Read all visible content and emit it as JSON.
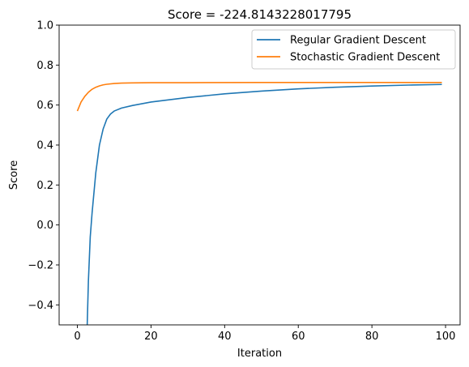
{
  "chart_data": {
    "type": "line",
    "title": "Score = -224.8143228017795",
    "xlabel": "Iteration",
    "ylabel": "Score",
    "xlim": [
      -4.95,
      103.95
    ],
    "ylim": [
      -0.5,
      1.0
    ],
    "xticks": [
      0,
      20,
      40,
      60,
      80,
      100
    ],
    "yticks": [
      -0.4,
      -0.2,
      0.0,
      0.2,
      0.4,
      0.6,
      0.8,
      1.0
    ],
    "xtick_labels": [
      "0",
      "20",
      "40",
      "60",
      "80",
      "100"
    ],
    "ytick_labels": [
      "−0.4",
      "−0.2",
      "0.0",
      "0.2",
      "0.4",
      "0.6",
      "0.8",
      "1.0"
    ],
    "grid": false,
    "legend_position": "top-right",
    "series": [
      {
        "name": "Regular Gradient Descent",
        "color": "#1f77b4",
        "x": [
          2.6,
          3,
          3.5,
          4,
          5,
          6,
          7,
          8,
          9,
          10,
          12,
          15,
          20,
          30,
          40,
          50,
          60,
          70,
          80,
          90,
          99
        ],
        "y": [
          -0.55,
          -0.28,
          -0.06,
          0.06,
          0.26,
          0.4,
          0.48,
          0.53,
          0.555,
          0.57,
          0.585,
          0.598,
          0.615,
          0.638,
          0.656,
          0.67,
          0.681,
          0.689,
          0.695,
          0.7,
          0.703
        ]
      },
      {
        "name": "Stochastic Gradient Descent",
        "color": "#ff7f0e",
        "x": [
          0,
          1,
          2,
          3,
          4,
          5,
          6,
          7,
          8,
          10,
          12,
          15,
          20,
          30,
          50,
          99
        ],
        "y": [
          0.57,
          0.615,
          0.643,
          0.664,
          0.679,
          0.689,
          0.696,
          0.701,
          0.704,
          0.708,
          0.71,
          0.711,
          0.712,
          0.712,
          0.713,
          0.713
        ]
      }
    ]
  }
}
